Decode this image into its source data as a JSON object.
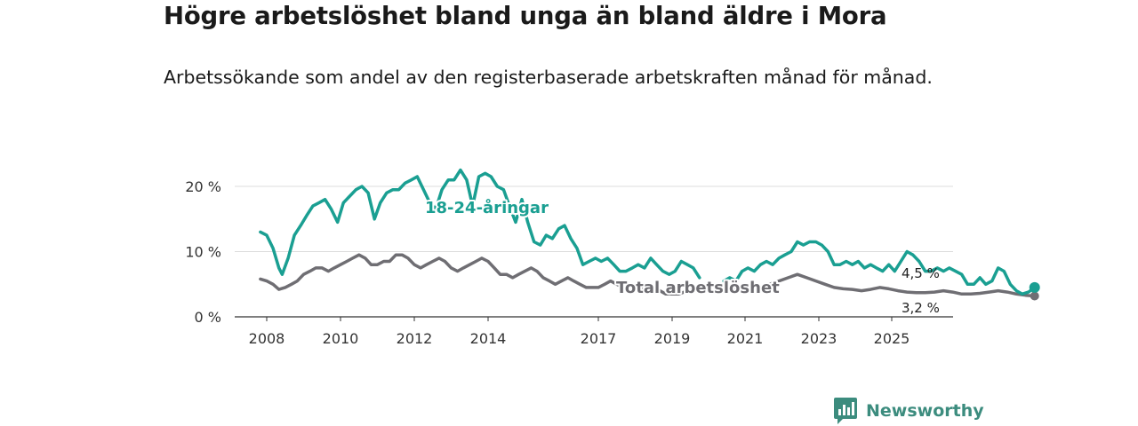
{
  "header": {
    "title": "Högre arbetslöshet bland unga än bland äldre i Mora",
    "subtitle": "Arbetssökande som andel av den registerbaserade arbetskraften månad för månad."
  },
  "brand": {
    "name": "Newsworthy"
  },
  "chart_data": {
    "type": "line",
    "title": "Högre arbetslöshet bland unga än bland äldre i Mora",
    "subtitle": "Arbetssökande som andel av den registerbaserade arbetskraften månad för månad.",
    "xlabel": "",
    "ylabel": "",
    "xlim": [
      2007.6,
      2026.4
    ],
    "ylim": [
      0,
      22.5
    ],
    "grid": true,
    "x_ticks": [
      {
        "value": 2008,
        "label": "2008"
      },
      {
        "value": 2010,
        "label": "2010"
      },
      {
        "value": 2012,
        "label": "2012"
      },
      {
        "value": 2014,
        "label": "2014"
      },
      {
        "value": 2017,
        "label": "2017"
      },
      {
        "value": 2019,
        "label": "2019"
      },
      {
        "value": 2021,
        "label": "2021"
      },
      {
        "value": 2023,
        "label": "2023"
      },
      {
        "value": 2025,
        "label": "2025"
      }
    ],
    "y_ticks": [
      {
        "value": 0,
        "label": "0 %"
      },
      {
        "value": 10,
        "label": "10 %"
      },
      {
        "value": 20,
        "label": "20 %"
      }
    ],
    "series": [
      {
        "name": "18-24-åringar",
        "label": "18-24-åringar",
        "color": "#1a9f92",
        "end_label": "4,5 %",
        "points": [
          [
            2007.83,
            13.0
          ],
          [
            2008.0,
            12.5
          ],
          [
            2008.17,
            10.5
          ],
          [
            2008.33,
            7.5
          ],
          [
            2008.42,
            6.5
          ],
          [
            2008.58,
            9.0
          ],
          [
            2008.75,
            12.5
          ],
          [
            2008.92,
            14.0
          ],
          [
            2009.08,
            15.5
          ],
          [
            2009.25,
            17.0
          ],
          [
            2009.42,
            17.5
          ],
          [
            2009.58,
            18.0
          ],
          [
            2009.75,
            16.5
          ],
          [
            2009.92,
            14.5
          ],
          [
            2010.08,
            17.5
          ],
          [
            2010.25,
            18.5
          ],
          [
            2010.42,
            19.5
          ],
          [
            2010.58,
            20.0
          ],
          [
            2010.75,
            19.0
          ],
          [
            2010.92,
            15.0
          ],
          [
            2011.08,
            17.5
          ],
          [
            2011.25,
            19.0
          ],
          [
            2011.42,
            19.5
          ],
          [
            2011.58,
            19.5
          ],
          [
            2011.75,
            20.5
          ],
          [
            2011.92,
            21.0
          ],
          [
            2012.08,
            21.5
          ],
          [
            2012.25,
            19.5
          ],
          [
            2012.42,
            17.5
          ],
          [
            2012.58,
            16.5
          ],
          [
            2012.75,
            19.5
          ],
          [
            2012.92,
            21.0
          ],
          [
            2013.08,
            21.0
          ],
          [
            2013.25,
            22.5
          ],
          [
            2013.42,
            21.0
          ],
          [
            2013.58,
            17.0
          ],
          [
            2013.75,
            21.5
          ],
          [
            2013.92,
            22.0
          ],
          [
            2014.08,
            21.5
          ],
          [
            2014.25,
            20.0
          ],
          [
            2014.42,
            19.5
          ],
          [
            2014.58,
            17.0
          ],
          [
            2014.75,
            14.5
          ],
          [
            2014.92,
            18.0
          ],
          [
            2015.08,
            14.5
          ],
          [
            2015.25,
            11.5
          ],
          [
            2015.42,
            11.0
          ],
          [
            2015.58,
            12.5
          ],
          [
            2015.75,
            12.0
          ],
          [
            2015.92,
            13.5
          ],
          [
            2016.08,
            14.0
          ],
          [
            2016.25,
            12.0
          ],
          [
            2016.42,
            10.5
          ],
          [
            2016.58,
            8.0
          ],
          [
            2016.75,
            8.5
          ],
          [
            2016.92,
            9.0
          ],
          [
            2017.08,
            8.5
          ],
          [
            2017.25,
            9.0
          ],
          [
            2017.42,
            8.0
          ],
          [
            2017.58,
            7.0
          ],
          [
            2017.75,
            7.0
          ],
          [
            2017.92,
            7.5
          ],
          [
            2018.08,
            8.0
          ],
          [
            2018.25,
            7.5
          ],
          [
            2018.42,
            9.0
          ],
          [
            2018.58,
            8.0
          ],
          [
            2018.75,
            7.0
          ],
          [
            2018.92,
            6.5
          ],
          [
            2019.08,
            7.0
          ],
          [
            2019.25,
            8.5
          ],
          [
            2019.42,
            8.0
          ],
          [
            2019.58,
            7.5
          ],
          [
            2019.75,
            6.0
          ],
          null,
          [
            2020.42,
            5.5
          ],
          [
            2020.58,
            6.0
          ],
          [
            2020.75,
            5.5
          ],
          [
            2020.92,
            7.0
          ],
          [
            2021.08,
            7.5
          ],
          [
            2021.25,
            7.0
          ],
          [
            2021.42,
            8.0
          ],
          [
            2021.58,
            8.5
          ],
          [
            2021.75,
            8.0
          ],
          [
            2021.92,
            9.0
          ],
          [
            2022.08,
            9.5
          ],
          [
            2022.25,
            10.0
          ],
          [
            2022.42,
            11.5
          ],
          [
            2022.58,
            11.0
          ],
          [
            2022.75,
            11.5
          ],
          [
            2022.92,
            11.5
          ],
          [
            2023.08,
            11.0
          ],
          [
            2023.25,
            10.0
          ],
          [
            2023.42,
            8.0
          ],
          [
            2023.58,
            8.0
          ],
          [
            2023.75,
            8.5
          ],
          [
            2023.92,
            8.0
          ],
          [
            2024.08,
            8.5
          ],
          [
            2024.25,
            7.5
          ],
          [
            2024.42,
            8.0
          ],
          [
            2024.58,
            7.5
          ],
          [
            2024.75,
            7.0
          ],
          [
            2024.92,
            8.0
          ],
          [
            2025.08,
            7.0
          ],
          [
            2025.25,
            8.5
          ],
          [
            2025.42,
            10.0
          ],
          [
            2025.58,
            9.5
          ],
          [
            2025.75,
            8.5
          ],
          [
            2025.92,
            7.0
          ],
          [
            2026.08,
            7.0
          ],
          [
            2026.25,
            7.5
          ],
          [
            2026.42,
            7.0
          ],
          [
            2026.58,
            7.5
          ],
          [
            2026.75,
            7.0
          ],
          [
            2026.92,
            6.5
          ],
          [
            2027.08,
            5.0
          ],
          [
            2027.25,
            5.0
          ],
          [
            2027.42,
            6.0
          ],
          [
            2027.58,
            5.0
          ],
          [
            2027.75,
            5.5
          ],
          [
            2027.92,
            7.5
          ],
          [
            2028.08,
            7.0
          ],
          [
            2028.25,
            5.0
          ],
          [
            2028.42,
            4.0
          ],
          [
            2028.58,
            3.5
          ],
          [
            2028.75,
            3.8
          ],
          [
            2028.92,
            4.5
          ]
        ]
      },
      {
        "name": "Total arbetslöshet",
        "label": "Total arbetslöshet",
        "color": "#6f6e73",
        "end_label": "3,2 %",
        "points": [
          [
            2007.83,
            5.8
          ],
          [
            2008.0,
            5.5
          ],
          [
            2008.17,
            5.0
          ],
          [
            2008.33,
            4.2
          ],
          [
            2008.5,
            4.5
          ],
          [
            2008.67,
            5.0
          ],
          [
            2008.83,
            5.5
          ],
          [
            2009.0,
            6.5
          ],
          [
            2009.17,
            7.0
          ],
          [
            2009.33,
            7.5
          ],
          [
            2009.5,
            7.5
          ],
          [
            2009.67,
            7.0
          ],
          [
            2009.83,
            7.5
          ],
          [
            2010.0,
            8.0
          ],
          [
            2010.17,
            8.5
          ],
          [
            2010.33,
            9.0
          ],
          [
            2010.5,
            9.5
          ],
          [
            2010.67,
            9.0
          ],
          [
            2010.83,
            8.0
          ],
          [
            2011.0,
            8.0
          ],
          [
            2011.17,
            8.5
          ],
          [
            2011.33,
            8.5
          ],
          [
            2011.5,
            9.5
          ],
          [
            2011.67,
            9.5
          ],
          [
            2011.83,
            9.0
          ],
          [
            2012.0,
            8.0
          ],
          [
            2012.17,
            7.5
          ],
          [
            2012.33,
            8.0
          ],
          [
            2012.5,
            8.5
          ],
          [
            2012.67,
            9.0
          ],
          [
            2012.83,
            8.5
          ],
          [
            2013.0,
            7.5
          ],
          [
            2013.17,
            7.0
          ],
          [
            2013.33,
            7.5
          ],
          [
            2013.5,
            8.0
          ],
          [
            2013.67,
            8.5
          ],
          [
            2013.83,
            9.0
          ],
          [
            2014.0,
            8.5
          ],
          [
            2014.17,
            7.5
          ],
          [
            2014.33,
            6.5
          ],
          [
            2014.5,
            6.5
          ],
          [
            2014.67,
            6.0
          ],
          [
            2014.83,
            6.5
          ],
          [
            2015.0,
            7.0
          ],
          [
            2015.17,
            7.5
          ],
          [
            2015.33,
            7.0
          ],
          [
            2015.5,
            6.0
          ],
          [
            2015.67,
            5.5
          ],
          [
            2015.83,
            5.0
          ],
          [
            2016.0,
            5.5
          ],
          [
            2016.17,
            6.0
          ],
          [
            2016.33,
            5.5
          ],
          [
            2016.5,
            5.0
          ],
          [
            2016.67,
            4.5
          ],
          [
            2016.83,
            4.5
          ],
          [
            2017.0,
            4.5
          ],
          [
            2017.17,
            5.0
          ],
          [
            2017.33,
            5.5
          ],
          [
            2017.5,
            5.0
          ],
          [
            2017.67,
            4.5
          ],
          [
            2017.83,
            4.0
          ],
          [
            2018.0,
            4.0
          ],
          [
            2018.17,
            4.5
          ],
          [
            2018.33,
            4.8
          ],
          [
            2018.5,
            4.5
          ],
          [
            2018.67,
            4.0
          ],
          [
            2018.83,
            3.5
          ],
          [
            2019.0,
            3.5
          ],
          [
            2019.17,
            3.5
          ],
          [
            2019.33,
            3.8
          ],
          [
            2019.5,
            4.2
          ],
          [
            2019.67,
            4.5
          ],
          [
            2019.83,
            4.3
          ],
          [
            2020.0,
            4.2
          ],
          null,
          [
            2020.42,
            4.0
          ],
          [
            2020.67,
            4.3
          ],
          [
            2020.92,
            4.0
          ],
          [
            2021.17,
            4.2
          ],
          [
            2021.42,
            4.5
          ],
          [
            2021.67,
            5.0
          ],
          [
            2021.92,
            5.5
          ],
          [
            2022.17,
            6.0
          ],
          [
            2022.42,
            6.5
          ],
          [
            2022.67,
            6.0
          ],
          [
            2022.92,
            5.5
          ],
          [
            2023.17,
            5.0
          ],
          [
            2023.42,
            4.5
          ],
          [
            2023.67,
            4.3
          ],
          [
            2023.92,
            4.2
          ],
          [
            2024.17,
            4.0
          ],
          [
            2024.42,
            4.2
          ],
          [
            2024.67,
            4.5
          ],
          [
            2024.92,
            4.3
          ],
          [
            2025.17,
            4.0
          ],
          [
            2025.42,
            3.8
          ],
          [
            2025.67,
            3.7
          ],
          [
            2025.92,
            3.7
          ],
          [
            2026.17,
            3.8
          ],
          [
            2026.42,
            4.0
          ],
          [
            2026.67,
            3.8
          ],
          [
            2026.92,
            3.5
          ],
          [
            2027.17,
            3.5
          ],
          [
            2027.42,
            3.6
          ],
          [
            2027.67,
            3.8
          ],
          [
            2027.92,
            4.0
          ],
          [
            2028.17,
            3.8
          ],
          [
            2028.42,
            3.5
          ],
          [
            2028.67,
            3.3
          ],
          [
            2028.92,
            3.2
          ]
        ]
      }
    ]
  }
}
